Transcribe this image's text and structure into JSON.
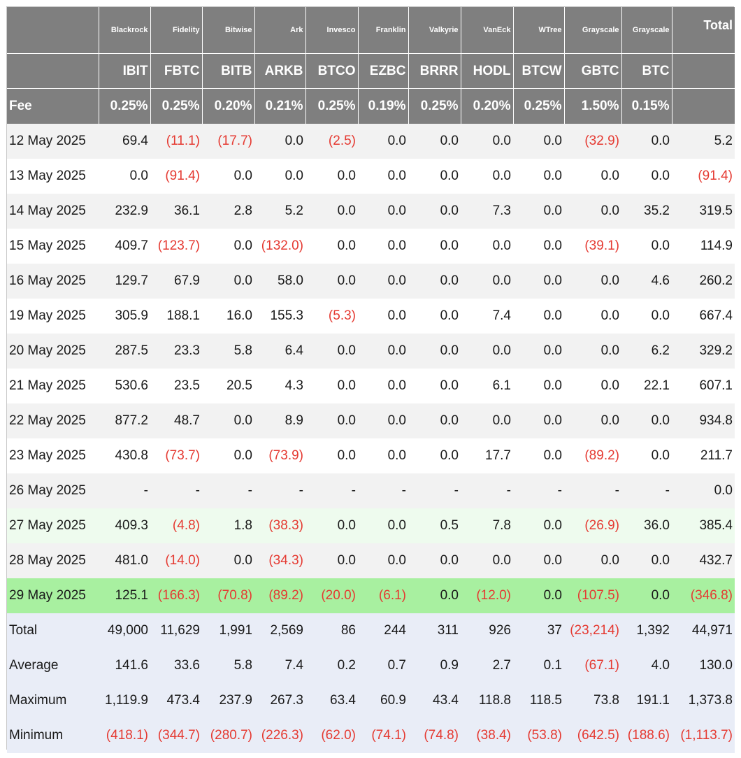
{
  "colors": {
    "header_bg": "#7f7f7f",
    "negative": "#e53a32",
    "row_grey": "#f2f2f2",
    "row_mint": "#eefbee",
    "row_green": "#a8f0a0",
    "stat_bg": "#e9edf7"
  },
  "header": {
    "issuers": [
      "Blackrock",
      "Fidelity",
      "Bitwise",
      "Ark",
      "Invesco",
      "Franklin",
      "Valkyrie",
      "VanEck",
      "WTree",
      "Grayscale",
      "Grayscale"
    ],
    "total_label": "Total",
    "tickers": [
      "IBIT",
      "FBTC",
      "BITB",
      "ARKB",
      "BTCO",
      "EZBC",
      "BRRR",
      "HODL",
      "BTCW",
      "GBTC",
      "BTC"
    ],
    "fee_label": "Fee",
    "fees": [
      "0.25%",
      "0.25%",
      "0.20%",
      "0.21%",
      "0.25%",
      "0.19%",
      "0.25%",
      "0.20%",
      "0.25%",
      "1.50%",
      "0.15%"
    ]
  },
  "rows": [
    {
      "date": "12 May 2025",
      "style": "grey",
      "values": [
        "69.4",
        "(11.1)",
        "(17.7)",
        "0.0",
        "(2.5)",
        "0.0",
        "0.0",
        "0.0",
        "0.0",
        "(32.9)",
        "0.0",
        "5.2"
      ]
    },
    {
      "date": "13 May 2025",
      "style": "white",
      "values": [
        "0.0",
        "(91.4)",
        "0.0",
        "0.0",
        "0.0",
        "0.0",
        "0.0",
        "0.0",
        "0.0",
        "0.0",
        "0.0",
        "(91.4)"
      ]
    },
    {
      "date": "14 May 2025",
      "style": "grey",
      "values": [
        "232.9",
        "36.1",
        "2.8",
        "5.2",
        "0.0",
        "0.0",
        "0.0",
        "7.3",
        "0.0",
        "0.0",
        "35.2",
        "319.5"
      ]
    },
    {
      "date": "15 May 2025",
      "style": "white",
      "values": [
        "409.7",
        "(123.7)",
        "0.0",
        "(132.0)",
        "0.0",
        "0.0",
        "0.0",
        "0.0",
        "0.0",
        "(39.1)",
        "0.0",
        "114.9"
      ]
    },
    {
      "date": "16 May 2025",
      "style": "grey",
      "values": [
        "129.7",
        "67.9",
        "0.0",
        "58.0",
        "0.0",
        "0.0",
        "0.0",
        "0.0",
        "0.0",
        "0.0",
        "4.6",
        "260.2"
      ]
    },
    {
      "date": "19 May 2025",
      "style": "white",
      "values": [
        "305.9",
        "188.1",
        "16.0",
        "155.3",
        "(5.3)",
        "0.0",
        "0.0",
        "7.4",
        "0.0",
        "0.0",
        "0.0",
        "667.4"
      ]
    },
    {
      "date": "20 May 2025",
      "style": "grey",
      "values": [
        "287.5",
        "23.3",
        "5.8",
        "6.4",
        "0.0",
        "0.0",
        "0.0",
        "0.0",
        "0.0",
        "0.0",
        "6.2",
        "329.2"
      ]
    },
    {
      "date": "21 May 2025",
      "style": "white",
      "values": [
        "530.6",
        "23.5",
        "20.5",
        "4.3",
        "0.0",
        "0.0",
        "0.0",
        "6.1",
        "0.0",
        "0.0",
        "22.1",
        "607.1"
      ]
    },
    {
      "date": "22 May 2025",
      "style": "grey",
      "values": [
        "877.2",
        "48.7",
        "0.0",
        "8.9",
        "0.0",
        "0.0",
        "0.0",
        "0.0",
        "0.0",
        "0.0",
        "0.0",
        "934.8"
      ]
    },
    {
      "date": "23 May 2025",
      "style": "white",
      "values": [
        "430.8",
        "(73.7)",
        "0.0",
        "(73.9)",
        "0.0",
        "0.0",
        "0.0",
        "17.7",
        "0.0",
        "(89.2)",
        "0.0",
        "211.7"
      ]
    },
    {
      "date": "26 May 2025",
      "style": "grey",
      "values": [
        "-",
        "-",
        "-",
        "-",
        "-",
        "-",
        "-",
        "-",
        "-",
        "-",
        "-",
        "0.0"
      ]
    },
    {
      "date": "27 May 2025",
      "style": "mint",
      "values": [
        "409.3",
        "(4.8)",
        "1.8",
        "(38.3)",
        "0.0",
        "0.0",
        "0.5",
        "7.8",
        "0.0",
        "(26.9)",
        "36.0",
        "385.4"
      ]
    },
    {
      "date": "28 May 2025",
      "style": "grey",
      "values": [
        "481.0",
        "(14.0)",
        "0.0",
        "(34.3)",
        "0.0",
        "0.0",
        "0.0",
        "0.0",
        "0.0",
        "0.0",
        "0.0",
        "432.7"
      ]
    },
    {
      "date": "29 May 2025",
      "style": "green",
      "values": [
        "125.1",
        "(166.3)",
        "(70.8)",
        "(89.2)",
        "(20.0)",
        "(6.1)",
        "0.0",
        "(12.0)",
        "0.0",
        "(107.5)",
        "0.0",
        "(346.8)"
      ]
    },
    {
      "date": "Total",
      "style": "stat",
      "values": [
        "49,000",
        "11,629",
        "1,991",
        "2,569",
        "86",
        "244",
        "311",
        "926",
        "37",
        "(23,214)",
        "1,392",
        "44,971"
      ]
    },
    {
      "date": "Average",
      "style": "stat",
      "values": [
        "141.6",
        "33.6",
        "5.8",
        "7.4",
        "0.2",
        "0.7",
        "0.9",
        "2.7",
        "0.1",
        "(67.1)",
        "4.0",
        "130.0"
      ]
    },
    {
      "date": "Maximum",
      "style": "stat",
      "values": [
        "1,119.9",
        "473.4",
        "237.9",
        "267.3",
        "63.4",
        "60.9",
        "43.4",
        "118.8",
        "118.5",
        "73.8",
        "191.1",
        "1,373.8"
      ]
    },
    {
      "date": "Minimum",
      "style": "stat",
      "values": [
        "(418.1)",
        "(344.7)",
        "(280.7)",
        "(226.3)",
        "(62.0)",
        "(74.1)",
        "(74.8)",
        "(38.4)",
        "(53.8)",
        "(642.5)",
        "(188.6)",
        "(1,113.7)"
      ]
    }
  ]
}
